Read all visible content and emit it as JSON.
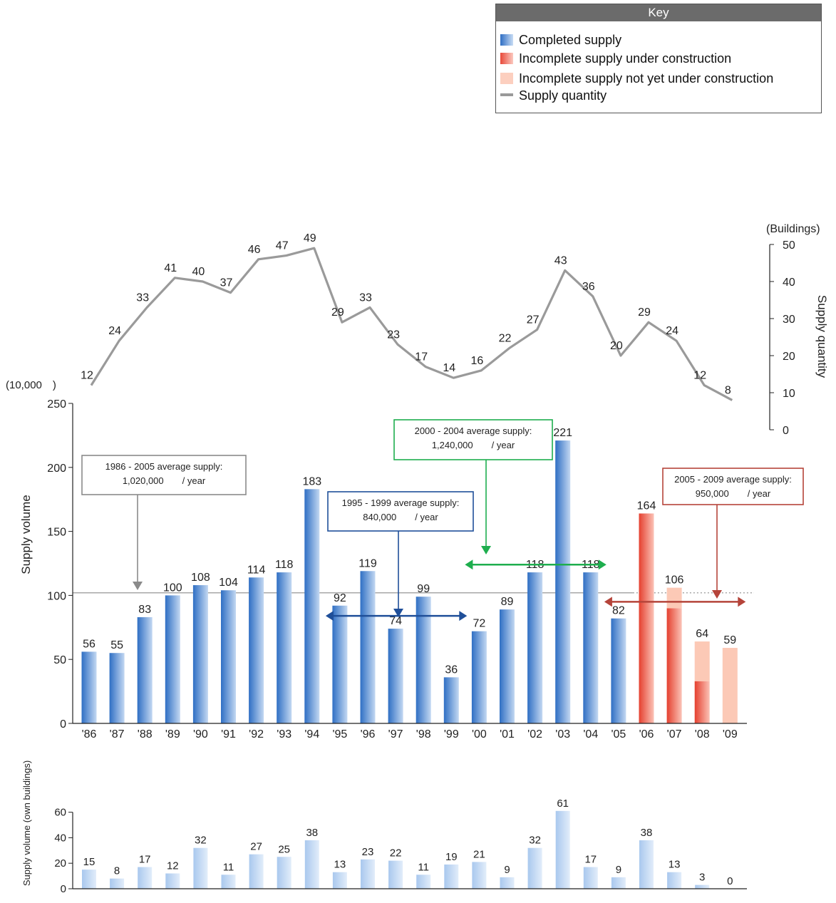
{
  "legend": {
    "title": "Key",
    "items": [
      {
        "label": "Completed supply",
        "color": "#4a86d0"
      },
      {
        "label": "Incomplete supply under construction",
        "color": "#ec5a47"
      },
      {
        "label": "Incomplete supply not yet under construction",
        "color": "#fcc9b6"
      },
      {
        "label": "Supply quantity",
        "color": "#9a9a9a"
      }
    ]
  },
  "chart_data": [
    {
      "type": "line",
      "ylabel": "Supply quantity",
      "yunit": "(Buildings)",
      "ylim": [
        0,
        50
      ],
      "yticks": [
        0,
        10,
        20,
        30,
        40,
        50
      ],
      "categories": [
        "'86",
        "'87",
        "'88",
        "'89",
        "'90",
        "'91",
        "'92",
        "'93",
        "'94",
        "'95",
        "'96",
        "'97",
        "'98",
        "'99",
        "'00",
        "'01",
        "'02",
        "'03",
        "'04",
        "'05",
        "'06",
        "'07",
        "'08",
        "'09"
      ],
      "series": [
        {
          "name": "Supply quantity",
          "values": [
            12,
            24,
            33,
            41,
            40,
            37,
            46,
            47,
            49,
            29,
            33,
            23,
            17,
            14,
            16,
            22,
            27,
            43,
            36,
            20,
            29,
            24,
            12,
            8
          ]
        }
      ]
    },
    {
      "type": "bar",
      "ylabel": "Supply volume",
      "yunit": "(10,000　)",
      "ylim": [
        0,
        250
      ],
      "yticks": [
        0,
        50,
        100,
        150,
        200,
        250
      ],
      "categories": [
        "'86",
        "'87",
        "'88",
        "'89",
        "'90",
        "'91",
        "'92",
        "'93",
        "'94",
        "'95",
        "'96",
        "'97",
        "'98",
        "'99",
        "'00",
        "'01",
        "'02",
        "'03",
        "'04",
        "'05",
        "'06",
        "'07",
        "'08",
        "'09"
      ],
      "totals": [
        56,
        55,
        83,
        100,
        108,
        104,
        114,
        118,
        183,
        92,
        119,
        74,
        99,
        36,
        72,
        89,
        118,
        221,
        118,
        82,
        164,
        106,
        64,
        59
      ],
      "series": [
        {
          "name": "Completed supply",
          "values": [
            56,
            55,
            83,
            100,
            108,
            104,
            114,
            118,
            183,
            92,
            119,
            74,
            99,
            36,
            72,
            89,
            118,
            221,
            118,
            82,
            0,
            0,
            0,
            0
          ]
        },
        {
          "name": "Incomplete supply under construction",
          "values": [
            0,
            0,
            0,
            0,
            0,
            0,
            0,
            0,
            0,
            0,
            0,
            0,
            0,
            0,
            0,
            0,
            0,
            0,
            0,
            0,
            164,
            90,
            33,
            0
          ]
        },
        {
          "name": "Incomplete supply not yet under construction",
          "values": [
            0,
            0,
            0,
            0,
            0,
            0,
            0,
            0,
            0,
            0,
            0,
            0,
            0,
            0,
            0,
            0,
            0,
            0,
            0,
            0,
            0,
            16,
            31,
            59
          ]
        }
      ],
      "reference_line": 102,
      "annotations": [
        {
          "line1": "1986 - 2005 average supply:",
          "line2": "1,020,000　　/ year",
          "color": "#8a8a8a"
        },
        {
          "line1": "1995 - 1999 average supply:",
          "line2": "840,000　　/ year",
          "color": "#1f4f99",
          "range": [
            "'95",
            "'99"
          ],
          "value": 84
        },
        {
          "line1": "2000 - 2004 average supply:",
          "line2": "1,240,000　　/ year",
          "color": "#1eae4e",
          "range": [
            "'00",
            "'04"
          ],
          "value": 124
        },
        {
          "line1": "2005 - 2009 average supply:",
          "line2": "950,000　　/ year",
          "color": "#b5443a",
          "range": [
            "'05",
            "'09"
          ],
          "value": 95
        }
      ]
    },
    {
      "type": "bar",
      "ylabel": "Supply volume (own buildings)",
      "ylim": [
        0,
        60
      ],
      "yticks": [
        0,
        20,
        40,
        60
      ],
      "categories": [
        "'86",
        "'87",
        "'88",
        "'89",
        "'90",
        "'91",
        "'92",
        "'93",
        "'94",
        "'95",
        "'96",
        "'97",
        "'98",
        "'99",
        "'00",
        "'01",
        "'02",
        "'03",
        "'04",
        "'05",
        "'06",
        "'07",
        "'08",
        "'09"
      ],
      "series": [
        {
          "values": [
            15,
            8,
            17,
            12,
            32,
            11,
            27,
            25,
            38,
            13,
            23,
            22,
            11,
            19,
            21,
            9,
            32,
            61,
            17,
            9,
            38,
            13,
            3,
            0
          ]
        }
      ]
    }
  ]
}
